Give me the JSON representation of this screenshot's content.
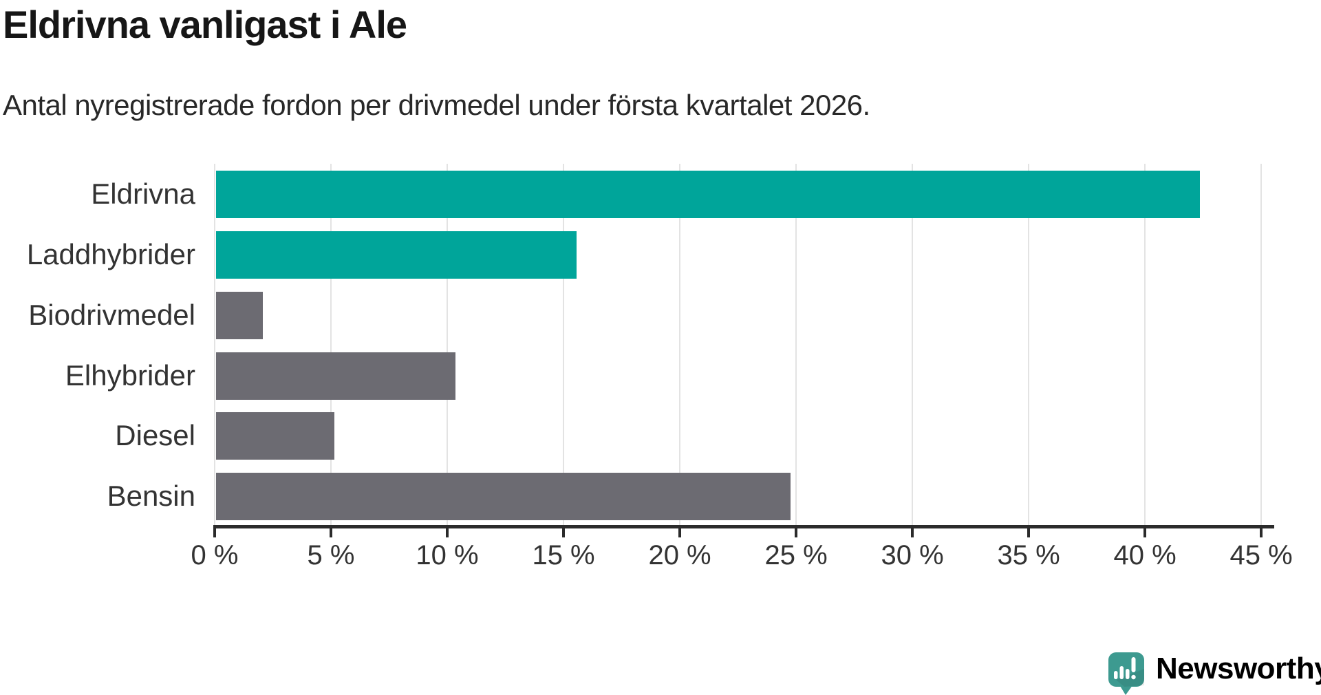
{
  "header": {
    "title": "Eldrivna vanligast i Ale",
    "subtitle": "Antal nyregistrerade fordon per drivmedel under första kvartalet 2026."
  },
  "chart_data": {
    "type": "bar",
    "orientation": "horizontal",
    "title": "Eldrivna vanligast i Ale",
    "subtitle": "Antal nyregistrerade fordon per drivmedel under första kvartalet 2026.",
    "categories": [
      "Eldrivna",
      "Laddhybrider",
      "Biodrivmedel",
      "Elhybrider",
      "Diesel",
      "Bensin"
    ],
    "values": [
      42.3,
      15.5,
      2,
      10.3,
      5.1,
      24.7
    ],
    "value_unit": "%",
    "bar_colors": [
      "#00a59a",
      "#00a59a",
      "#6c6b72",
      "#6c6b72",
      "#6c6b72",
      "#6c6b72"
    ],
    "xlim": [
      0,
      45.5
    ],
    "x_ticks": [
      0,
      5,
      10,
      15,
      20,
      25,
      30,
      35,
      40,
      45
    ],
    "x_tick_labels": [
      "0 %",
      "5 %",
      "10 %",
      "15 %",
      "20 %",
      "25 %",
      "30 %",
      "35 %",
      "40 %",
      "45 %"
    ],
    "xlabel": "",
    "ylabel": "",
    "grid": "vertical gridlines on",
    "legend": "none"
  },
  "branding": {
    "logo_text": "Newsworthy",
    "logo_icon": "newsworthy-speech-bubble-bar-chart-icon",
    "logo_color": "#3d9a90"
  },
  "colors": {
    "accent_teal": "#00a59a",
    "neutral_gray": "#6c6b72",
    "gridline": "#e3e3e3",
    "axis": "#2b2b2b",
    "title_text": "#161616",
    "body_text": "#333333"
  }
}
